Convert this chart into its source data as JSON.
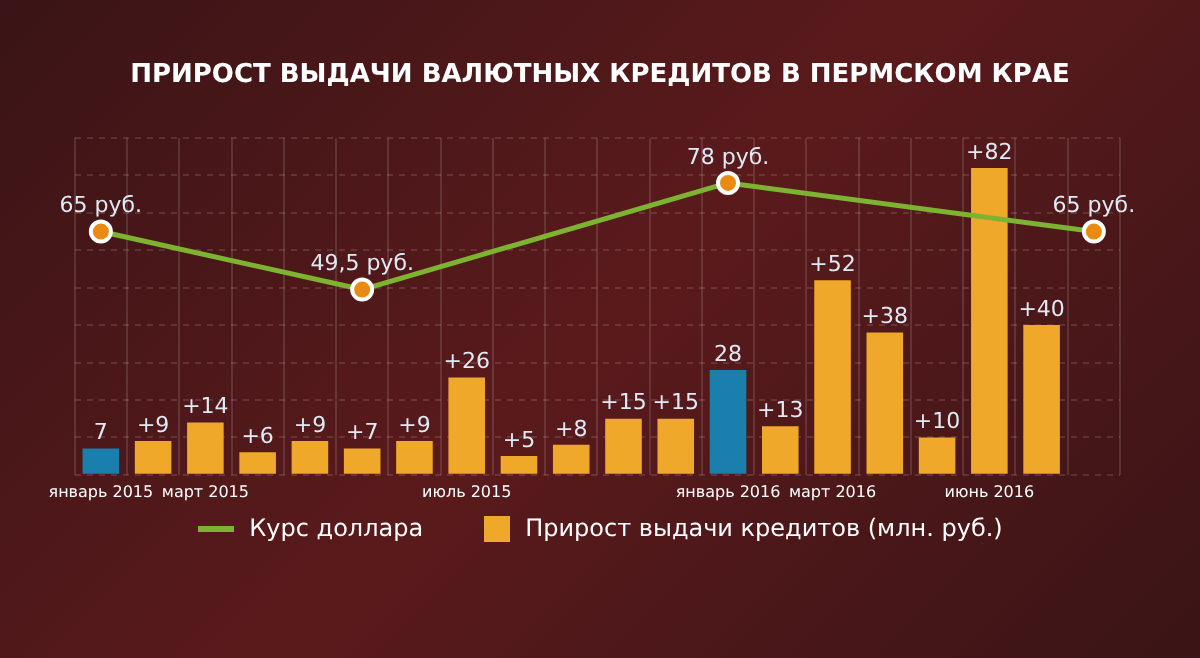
{
  "chart_data": {
    "type": "bar",
    "title": "ПРИРОСТ ВЫДАЧИ ВАЛЮТНЫХ КРЕДИТОВ В ПЕРМСКОМ КРАЕ",
    "categories": [
      "январь 2015",
      null,
      "март 2015",
      null,
      null,
      null,
      null,
      "июль 2015",
      null,
      null,
      null,
      null,
      "январь 2016",
      null,
      "март 2016",
      null,
      null,
      "июнь 2016",
      null,
      null
    ],
    "series": [
      {
        "name": "Курс доллара",
        "type": "line",
        "color": "#7cb330",
        "marker": "circle",
        "values": [
          65,
          null,
          null,
          null,
          null,
          49.5,
          null,
          null,
          null,
          null,
          null,
          null,
          78,
          null,
          null,
          null,
          null,
          null,
          null,
          65
        ],
        "value_labels": [
          "65 руб.",
          null,
          null,
          null,
          null,
          "49,5 руб.",
          null,
          null,
          null,
          null,
          null,
          null,
          "78 руб.",
          null,
          null,
          null,
          null,
          null,
          null,
          "65 руб."
        ]
      },
      {
        "name": "Прирост выдачи кредитов (млн. руб.)",
        "color": "#f0a82a",
        "colors": [
          "#1b7fae",
          "#f0a82a",
          "#f0a82a",
          "#f0a82a",
          "#f0a82a",
          "#f0a82a",
          "#f0a82a",
          "#f0a82a",
          "#f0a82a",
          "#f0a82a",
          "#f0a82a",
          "#f0a82a",
          "#1b7fae",
          "#f0a82a",
          "#f0a82a",
          "#f0a82a",
          "#f0a82a",
          "#f0a82a",
          "#f0a82a",
          "#f0a82a"
        ],
        "values": [
          7,
          9,
          14,
          6,
          9,
          7,
          9,
          26,
          5,
          8,
          15,
          15,
          28,
          13,
          52,
          38,
          10,
          82,
          40,
          null
        ],
        "value_labels": [
          "7",
          "+9",
          "+14",
          "+6",
          "+9",
          "+7",
          "+9",
          "+26",
          "+5",
          "+8",
          "+15",
          "+15",
          "28",
          "+13",
          "+52",
          "+38",
          "+10",
          "+82",
          "+40",
          null
        ]
      }
    ],
    "ylim": [
      0,
      90
    ],
    "yticks": [
      {
        "value": 0,
        "label": null
      },
      {
        "value": 10,
        "label": null
      },
      {
        "value": 20,
        "label": null
      },
      {
        "value": 30,
        "label": null
      },
      {
        "value": 40,
        "label": null
      },
      {
        "value": 50,
        "label": null
      },
      {
        "value": 60,
        "label": null
      },
      {
        "value": 70,
        "label": null
      },
      {
        "value": 80,
        "label": null
      },
      {
        "value": 90,
        "label": null
      }
    ],
    "tick_labels": "x",
    "grid": true,
    "legend": "bottom"
  }
}
